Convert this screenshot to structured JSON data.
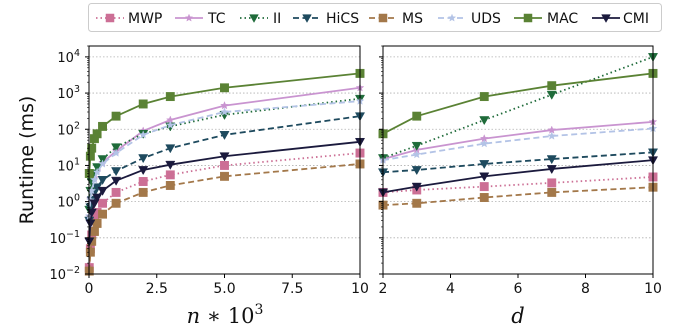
{
  "ylabel": "Runtime (ms)",
  "legend": {
    "placement": "top",
    "entries": [
      {
        "name": "MWP",
        "color": "#cc6f95",
        "marker": "square",
        "dash": "dotted"
      },
      {
        "name": "TC",
        "color": "#c994d0",
        "marker": "star",
        "dash": "solid"
      },
      {
        "name": "II",
        "color": "#1f6b3a",
        "marker": "triangle-down",
        "dash": "dotted"
      },
      {
        "name": "HiCS",
        "color": "#1e4a5e",
        "marker": "triangle-down",
        "dash": "dashed"
      },
      {
        "name": "MS",
        "color": "#a3784a",
        "marker": "square",
        "dash": "dashed"
      },
      {
        "name": "UDS",
        "color": "#b3c3e6",
        "marker": "star",
        "dash": "dashed"
      },
      {
        "name": "MAC",
        "color": "#5a8234",
        "marker": "square",
        "dash": "solid"
      },
      {
        "name": "CMI",
        "color": "#1b1a3d",
        "marker": "triangle-down",
        "dash": "solid"
      }
    ]
  },
  "chart_data": [
    {
      "type": "line",
      "xlabel": "n * 10^3",
      "ylabel": "Runtime (ms)",
      "xscale": "linear",
      "yscale": "log",
      "xlim": [
        0,
        10
      ],
      "ylim": [
        0.01,
        20000
      ],
      "xticks": [
        "0",
        "2.5",
        "5.0",
        "7.5",
        "10"
      ],
      "xtick_values": [
        0,
        2.5,
        5,
        7.5,
        10
      ],
      "yticks": [
        "10^-2",
        "10^-1",
        "10^0",
        "10^1",
        "10^2",
        "10^3",
        "10^4"
      ],
      "ytick_values": [
        0.01,
        0.1,
        1,
        10,
        100,
        1000,
        10000
      ],
      "grid": "y",
      "series": [
        {
          "name": "MWP",
          "x": [
            0.01,
            0.05,
            0.1,
            0.2,
            0.3,
            0.5,
            1,
            2,
            3,
            5,
            10
          ],
          "y": [
            0.015,
            0.05,
            0.12,
            0.3,
            0.5,
            0.9,
            1.8,
            3.6,
            5.5,
            10,
            22
          ]
        },
        {
          "name": "TC",
          "x": [
            0.01,
            0.05,
            0.1,
            0.2,
            0.3,
            0.5,
            1,
            2,
            3,
            5,
            10
          ],
          "y": [
            0.4,
            1.2,
            2.2,
            4.5,
            7,
            12,
            25,
            90,
            180,
            450,
            1400
          ]
        },
        {
          "name": "II",
          "x": [
            0.01,
            0.05,
            0.1,
            0.2,
            0.3,
            0.5,
            1,
            2,
            3,
            5,
            10
          ],
          "y": [
            0.6,
            2,
            3.5,
            6,
            9,
            15,
            32,
            75,
            120,
            250,
            700
          ]
        },
        {
          "name": "HiCS",
          "x": [
            0.01,
            0.05,
            0.1,
            0.2,
            0.3,
            0.5,
            1,
            2,
            3,
            5,
            10
          ],
          "y": [
            0.3,
            0.7,
            1.1,
            1.8,
            2.5,
            4,
            7,
            16,
            30,
            70,
            230
          ]
        },
        {
          "name": "MS",
          "x": [
            0.01,
            0.05,
            0.1,
            0.2,
            0.3,
            0.5,
            1,
            2,
            3,
            5,
            10
          ],
          "y": [
            0.012,
            0.04,
            0.08,
            0.15,
            0.25,
            0.45,
            0.9,
            1.8,
            2.8,
            5,
            11
          ]
        },
        {
          "name": "UDS",
          "x": [
            0.01,
            0.05,
            0.1,
            0.2,
            0.3,
            0.5,
            1,
            2,
            3,
            5,
            10
          ],
          "y": [
            0.4,
            1.1,
            2,
            4,
            6.5,
            11,
            22,
            70,
            130,
            300,
            600
          ]
        },
        {
          "name": "MAC",
          "x": [
            0.01,
            0.05,
            0.1,
            0.2,
            0.3,
            0.5,
            1,
            2,
            3,
            5,
            10
          ],
          "y": [
            6,
            18,
            30,
            55,
            75,
            120,
            230,
            500,
            800,
            1400,
            3500
          ]
        },
        {
          "name": "CMI",
          "x": [
            0.01,
            0.05,
            0.1,
            0.2,
            0.3,
            0.5,
            1,
            2,
            3,
            5,
            10
          ],
          "y": [
            0.08,
            0.25,
            0.5,
            0.9,
            1.3,
            2,
            3.8,
            7.5,
            10.5,
            18,
            45
          ]
        }
      ]
    },
    {
      "type": "line",
      "xlabel": "d",
      "xscale": "linear",
      "yscale": "log",
      "xlim": [
        2,
        10
      ],
      "ylim": [
        0.01,
        20000
      ],
      "xticks": [
        "2",
        "4",
        "6",
        "8",
        "10"
      ],
      "xtick_values": [
        2,
        4,
        6,
        8,
        10
      ],
      "grid": "y",
      "series": [
        {
          "name": "MWP",
          "x": [
            2,
            3,
            5,
            7,
            10
          ],
          "y": [
            1.8,
            2.1,
            2.6,
            3.3,
            4.8
          ]
        },
        {
          "name": "TC",
          "x": [
            2,
            3,
            5,
            7,
            10
          ],
          "y": [
            15,
            27,
            55,
            95,
            160
          ]
        },
        {
          "name": "II",
          "x": [
            2,
            3,
            5,
            7,
            10
          ],
          "y": [
            16,
            35,
            180,
            900,
            10000
          ]
        },
        {
          "name": "HiCS",
          "x": [
            2,
            3,
            5,
            7,
            10
          ],
          "y": [
            6.5,
            7.5,
            11,
            15,
            23
          ]
        },
        {
          "name": "MS",
          "x": [
            2,
            3,
            5,
            7,
            10
          ],
          "y": [
            0.8,
            0.9,
            1.3,
            1.8,
            2.5
          ]
        },
        {
          "name": "UDS",
          "x": [
            2,
            3,
            5,
            7,
            10
          ],
          "y": [
            14,
            20,
            40,
            65,
            105
          ]
        },
        {
          "name": "MAC",
          "x": [
            2,
            3,
            5,
            7,
            10
          ],
          "y": [
            75,
            230,
            800,
            1600,
            3500
          ]
        },
        {
          "name": "CMI",
          "x": [
            2,
            3,
            5,
            7,
            10
          ],
          "y": [
            1.8,
            2.6,
            5,
            8,
            14
          ]
        }
      ]
    }
  ]
}
